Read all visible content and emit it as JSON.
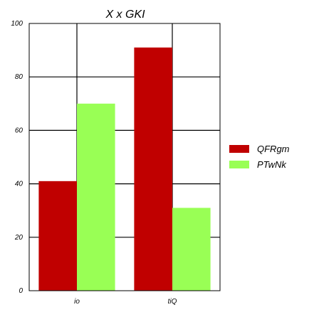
{
  "chart_data": {
    "type": "bar",
    "title": "X x GKI",
    "xlabel": "",
    "ylabel": "",
    "categories": [
      "io",
      "tiQ"
    ],
    "series": [
      {
        "name": "QFRgm",
        "values": [
          41,
          91
        ],
        "color": "#c00000"
      },
      {
        "name": "PTwNk",
        "values": [
          70,
          31
        ],
        "color": "#99ff55"
      }
    ],
    "ylim": [
      0,
      100
    ],
    "yticks": [
      0,
      20,
      40,
      60,
      80,
      100
    ],
    "grid": true,
    "legend": "right"
  }
}
